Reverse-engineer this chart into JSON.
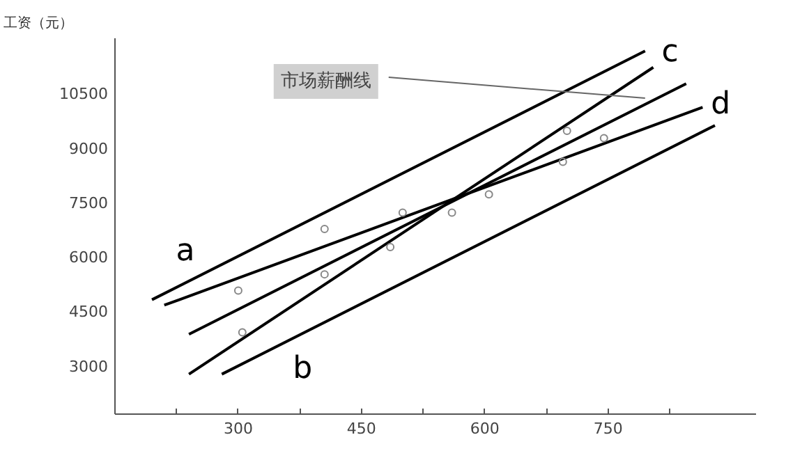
{
  "chart_data": {
    "type": "line",
    "ylabel": "工资（元）",
    "xlim": [
      150,
      930
    ],
    "ylim": [
      1650,
      12000
    ],
    "xticks": [
      {
        "value": 225,
        "label": null
      },
      300,
      {
        "value": 375,
        "label": null
      },
      450,
      {
        "value": 525,
        "label": null
      },
      600,
      {
        "value": 675,
        "label": null
      },
      750,
      {
        "value": 825,
        "label": null
      }
    ],
    "yticks": [
      3000,
      4500,
      6000,
      7500,
      9000,
      10500
    ],
    "grid": false,
    "legend": false,
    "line_style": "solid",
    "series": [
      {
        "name": "a",
        "color": "#000000",
        "x": [
          195,
          795
        ],
        "values": [
          4800,
          11650
        ]
      },
      {
        "name": "d",
        "color": "#000000",
        "x": [
          210,
          865
        ],
        "values": [
          4650,
          10100
        ]
      },
      {
        "color": "#000000",
        "x": [
          240,
          845
        ],
        "values": [
          3850,
          10750
        ]
      },
      {
        "name": "c",
        "color": "#000000",
        "x": [
          240,
          805
        ],
        "values": [
          2750,
          11200
        ]
      },
      {
        "name": "b",
        "color": "#000000",
        "x": [
          280,
          880
        ],
        "values": [
          2750,
          9600
        ]
      },
      {
        "type": "scatter",
        "marker": "circle",
        "color": "#888888",
        "x": [
          300,
          305,
          405,
          405,
          485,
          500,
          560,
          605,
          695,
          700,
          745
        ],
        "values": [
          5050,
          3900,
          6750,
          5500,
          6250,
          7200,
          7200,
          7700,
          8600,
          9450,
          9250
        ]
      }
    ],
    "annotations": [
      {
        "text": "市场薪酬线",
        "x": 795,
        "y": 10350
      }
    ]
  }
}
